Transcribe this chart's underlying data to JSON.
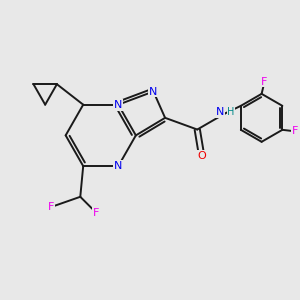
{
  "bg_color": "#e8e8e8",
  "bond_color": "#1a1a1a",
  "bond_width": 1.4,
  "atom_colors": {
    "N": "#0000ee",
    "O": "#ee0000",
    "F": "#ee00ee",
    "H": "#008888",
    "C": "#1a1a1a"
  },
  "font_size": 8.0,
  "fig_size": [
    3.0,
    3.0
  ],
  "dpi": 100
}
